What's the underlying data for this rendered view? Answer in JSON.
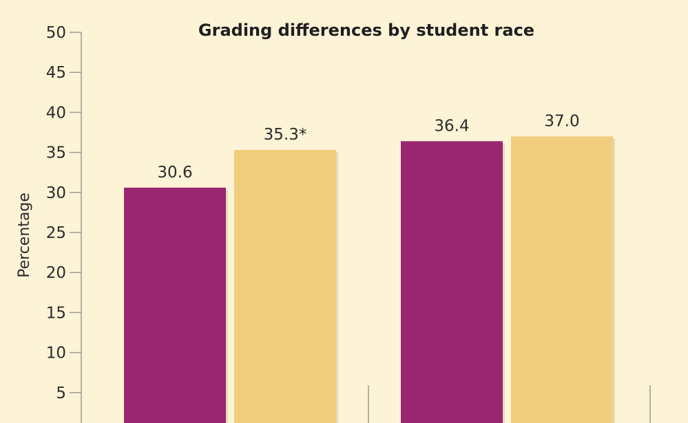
{
  "chart_data": {
    "type": "bar",
    "title": "Grading differences by student race",
    "xlabel": "",
    "ylabel": "Percentage",
    "ylim": [
      0,
      50
    ],
    "yticks": [
      5,
      10,
      15,
      20,
      25,
      30,
      35,
      40,
      45,
      50
    ],
    "groups": [
      {
        "bars": [
          {
            "value": 30.6,
            "label": "30.6",
            "color": "#9b2670"
          },
          {
            "value": 35.3,
            "label": "35.3*",
            "color": "#f0cd7c"
          }
        ]
      },
      {
        "bars": [
          {
            "value": 36.4,
            "label": "36.4",
            "color": "#9b2670"
          },
          {
            "value": 37.0,
            "label": "37.0",
            "color": "#f0cd7c"
          }
        ]
      }
    ],
    "grid": false
  },
  "colors": {
    "background": "#fdf3d7",
    "axis": "#9a9a90",
    "magenta": "#9b2670",
    "gold": "#f0cd7c"
  }
}
